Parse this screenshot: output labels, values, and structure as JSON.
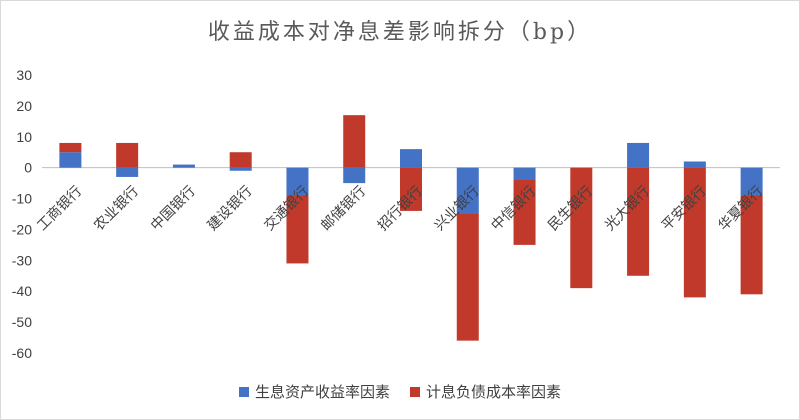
{
  "chart_data": {
    "type": "bar",
    "stacked": true,
    "title": "收益成本对净息差影响拆分（bp）",
    "categories": [
      "工商银行",
      "农业银行",
      "中国银行",
      "建设银行",
      "交通银行",
      "邮储银行",
      "招行银行",
      "兴业银行",
      "中信银行",
      "民生银行",
      "光大银行",
      "平安银行",
      "华夏银行"
    ],
    "series": [
      {
        "name": "生息资产收益率因素",
        "color": "#4472C4",
        "values": [
          5,
          -3,
          1,
          -1,
          -9,
          -5,
          6,
          -15,
          -4,
          0,
          8,
          2,
          -9
        ]
      },
      {
        "name": "计息负债成本率因素",
        "color": "#C0392B",
        "values": [
          3,
          8,
          0,
          5,
          -22,
          17,
          -14,
          -41,
          -21,
          -39,
          -35,
          -42,
          -32
        ]
      }
    ],
    "ylim": [
      -60,
      30
    ],
    "yticks": [
      "30",
      "20",
      "10",
      "0",
      "-10",
      "-20",
      "-30",
      "-40",
      "-50",
      "-60"
    ],
    "xlabel": "",
    "ylabel": "",
    "grid": false,
    "legend": "bottom"
  }
}
